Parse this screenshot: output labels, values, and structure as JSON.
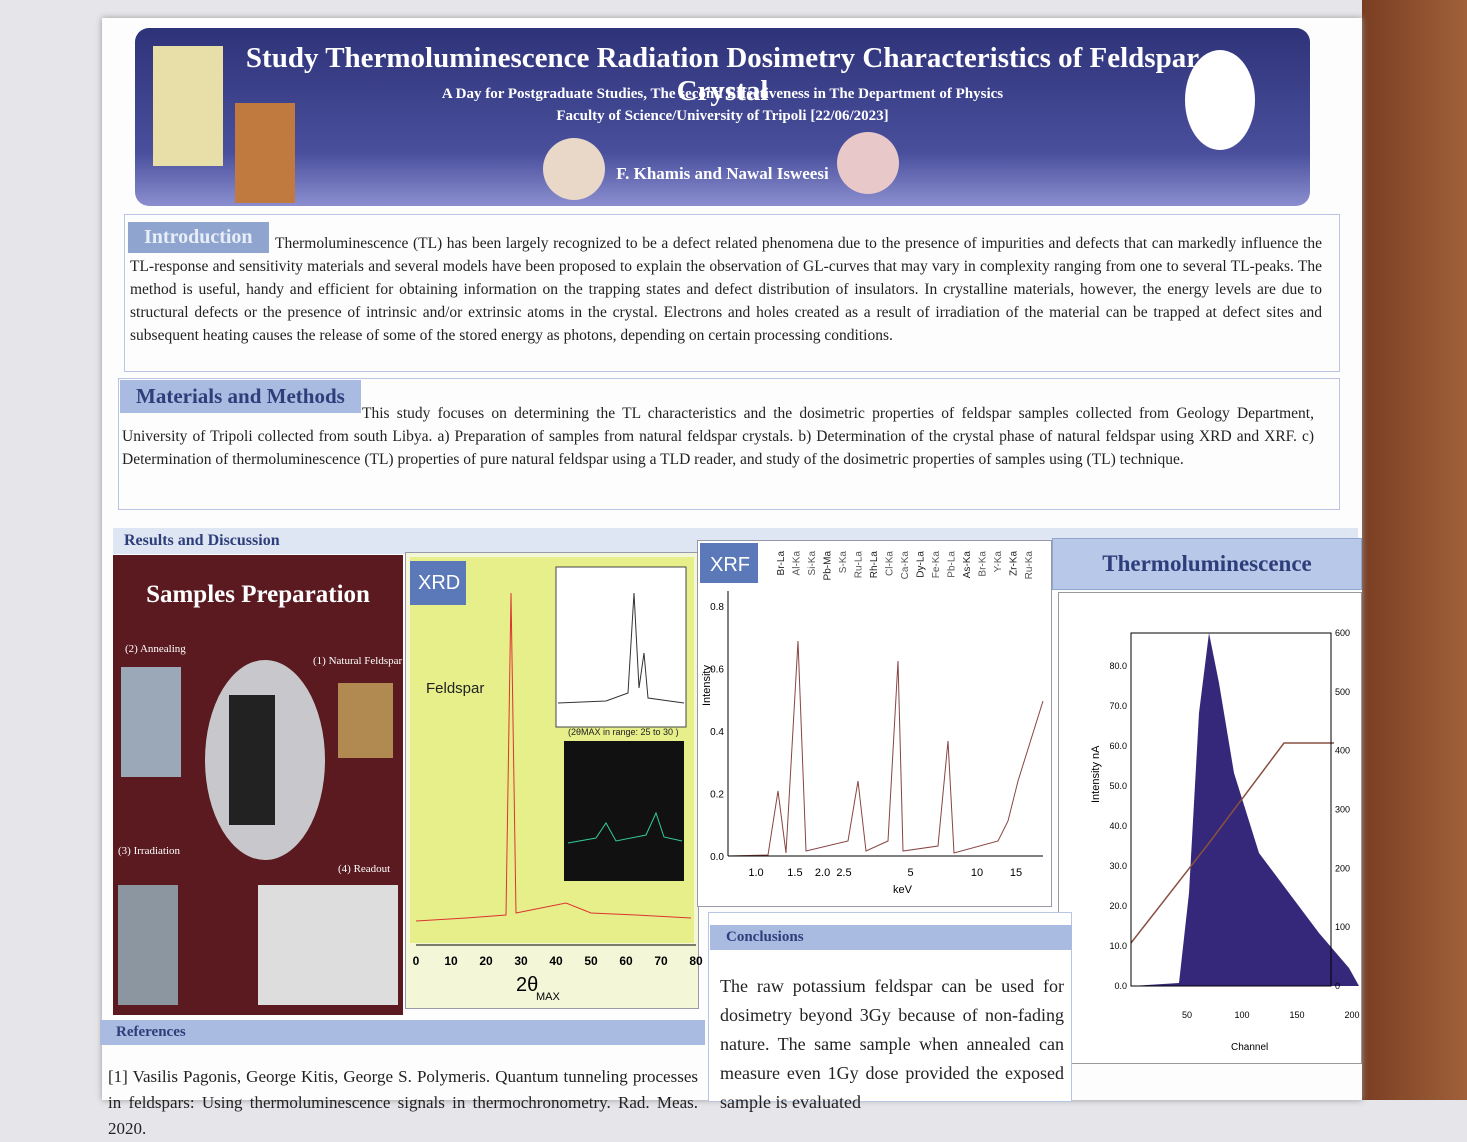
{
  "header": {
    "title": "Study Thermoluminescence Radiation Dosimetry Characteristics of Feldspar Crystal",
    "subtitle_lines": [
      "A Day for Postgraduate Studies, The second Effectiveness in The Department of Physics",
      "Faculty of Science/University of Tripoli [22/06/2023]"
    ],
    "authors": "F. Khamis and Nawal Isweesi"
  },
  "introduction": {
    "heading": "Introduction",
    "text": "Thermoluminescence (TL) has been largely recognized to be a defect related phenomena due to the presence of impurities and defects that can markedly influence the TL-response and sensitivity materials and several models have been proposed to explain the observation of GL-curves that may vary in complexity ranging from one to several TL-peaks. The method is useful, handy and efficient for obtaining information on the trapping states and defect distribution of insulators. In crystalline materials, however, the energy levels are due to structural defects or the presence of intrinsic and/or extrinsic atoms in the crystal. Electrons and holes created as a result of irradiation of the material can be trapped at defect sites and subsequent heating causes the release of some of the stored energy as photons, depending on certain processing conditions."
  },
  "materials": {
    "heading": "Materials and Methods",
    "text": "This study focuses on determining the TL characteristics and the dosimetric properties of feldspar samples collected from Geology Department, University of Tripoli collected from south Libya. a) Preparation of samples from natural feldspar crystals. b) Determination of the crystal phase of natural feldspar using XRD and XRF. c) Determination of thermoluminescence (TL) properties of pure natural feldspar using a TLD reader, and study of the dosimetric properties of samples using (TL) technique."
  },
  "results": {
    "heading": "Results and Discussion"
  },
  "samples": {
    "title": "Samples Preparation",
    "steps": [
      "(1) Natural Feldspar",
      "(2) Annealing",
      "(3) Irradiation",
      "(4) Readout"
    ]
  },
  "xrd": {
    "title": "XRD",
    "label": "Feldspar",
    "xticks": [
      "0",
      "10",
      "20",
      "30",
      "40",
      "50",
      "60",
      "70",
      "80"
    ],
    "x_label": "2θ",
    "x_label_sub": "MAX",
    "inset_caption": "(2θMAX in range: 25 to 30 )"
  },
  "xrf": {
    "title": "XRF",
    "y_label": "Intensity",
    "yticks": [
      "0.0",
      "0.2",
      "0.4",
      "0.6",
      "0.8"
    ],
    "xticks": [
      "1.0",
      "1.5",
      "2.0",
      "2.5",
      "5",
      "10",
      "15"
    ],
    "x_label": "keV",
    "elements": [
      "Br-La",
      "Al-Ka",
      "Si-Ka",
      "Pb-Ma",
      "S-Ka",
      "Ru-La",
      "Rh-La",
      "Cl-Ka",
      "Ca-Ka",
      "Dy-La",
      "Fe-Ka",
      "Pb-La",
      "As-Ka",
      "Br-Ka",
      "Y-Ka",
      "Zr-Ka",
      "Ru-Ka"
    ]
  },
  "tl": {
    "title": "Thermoluminescence",
    "y_label": "Intensity nA",
    "yticks": [
      "0.0",
      "10.0",
      "20.0",
      "30.0",
      "40.0",
      "50.0",
      "60.0",
      "70.0",
      "80.0"
    ],
    "y2ticks": [
      "0",
      "100",
      "200",
      "300",
      "400",
      "500",
      "600"
    ],
    "xticks": [
      "50",
      "100",
      "150",
      "200"
    ],
    "x_label": "Channel"
  },
  "conclusions": {
    "heading": "Conclusions",
    "text": "The raw potassium feldspar can be used for dosimetry beyond 3Gy because of non-fading nature. The same sample when annealed can measure even 1Gy dose provided the exposed sample is evaluated"
  },
  "references": {
    "heading": "References",
    "text": "[1] Vasilis Pagonis, George Kitis, George S. Polymeris. Quantum tunneling processes in feldspars: Using thermoluminescence signals in thermochronometry. Rad. Meas. 2020."
  }
}
